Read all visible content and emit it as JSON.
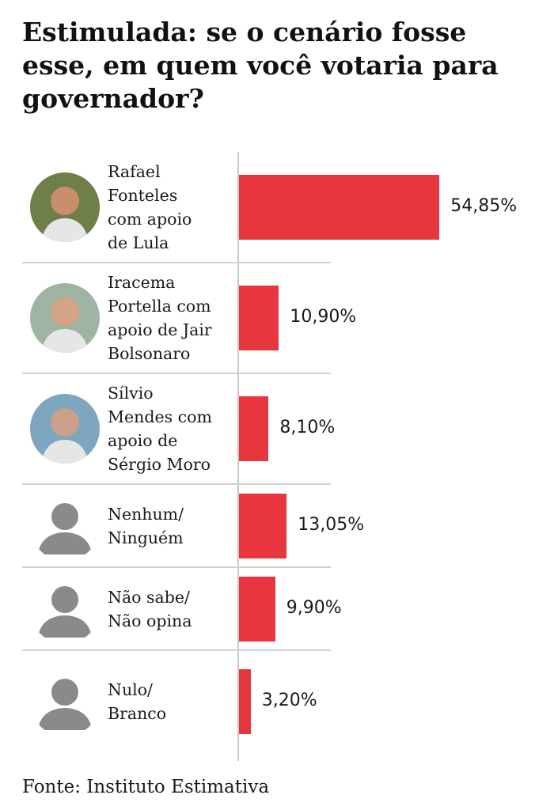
{
  "title": "Estimulada: se o cenário fosse esse, em quem você votaria para governador?",
  "source": "Fonte: Instituto Estimativa",
  "colors": {
    "bar": "#e8363f",
    "text": "#1a1a1a",
    "divider": "#d2d2d2"
  },
  "chart_data": {
    "type": "bar",
    "orientation": "horizontal",
    "categories": [
      "Rafael Fonteles com apoio de Lula",
      "Iracema Portella com apoio de Jair Bolsonaro",
      "Sílvio Mendes com apoio de Sérgio Moro",
      "Nenhum/ Ninguém",
      "Não sabe/ Não opina",
      "Nulo/ Branco"
    ],
    "category_lines": [
      "Rafael\nFonteles\ncom apoio\nde Lula",
      "Iracema\nPortella com\napoio de Jair\nBolsonaro",
      "Sílvio\nMendes com\napoio de\nSérgio Moro",
      "Nenhum/\nNinguém",
      "Não sabe/\nNão opina",
      "Nulo/\nBranco"
    ],
    "avatars": [
      "photo-icon",
      "photo-icon",
      "photo-icon",
      "person-silhouette-icon",
      "person-silhouette-icon",
      "person-silhouette-icon"
    ],
    "values": [
      54.85,
      10.9,
      8.1,
      13.05,
      9.9,
      3.2
    ],
    "labels": [
      "54,85%",
      "10,90%",
      "8,10%",
      "13,05%",
      "9,90%",
      "3,20%"
    ],
    "xlim": [
      0,
      55
    ],
    "grid": false,
    "legend": "none"
  }
}
